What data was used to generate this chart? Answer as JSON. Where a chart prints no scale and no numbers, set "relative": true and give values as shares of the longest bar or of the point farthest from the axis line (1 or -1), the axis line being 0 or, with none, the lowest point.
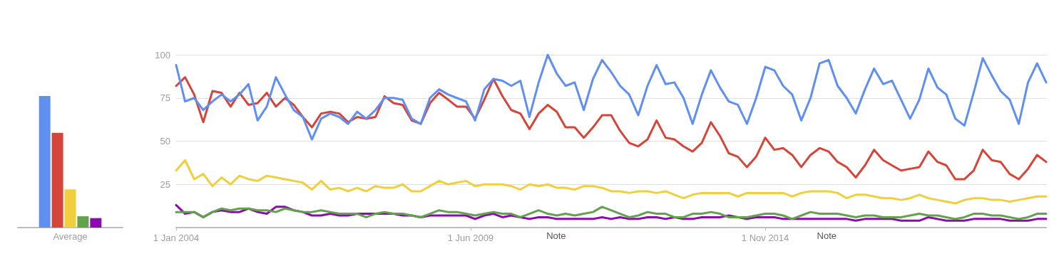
{
  "chart_data": [
    {
      "type": "bar",
      "categories": [
        "Average"
      ],
      "relative": true,
      "series": [
        {
          "color": "#5f8ff0",
          "values": [
            1
          ]
        },
        {
          "color": "#d6453a",
          "values": [
            0.72
          ]
        },
        {
          "color": "#f0cf3e",
          "values": [
            0.29
          ]
        },
        {
          "color": "#62a24a",
          "values": [
            0.086
          ]
        },
        {
          "color": "#8c0bb0",
          "values": [
            0.072
          ]
        }
      ]
    },
    {
      "type": "line",
      "marker": "none",
      "grid": "y",
      "x": [
        "2004-01",
        "2004-03",
        "2004-05",
        "2004-07",
        "2004-09",
        "2004-11",
        "2005-01",
        "2005-03",
        "2005-05",
        "2005-07",
        "2005-09",
        "2005-11",
        "2006-01",
        "2006-03",
        "2006-05",
        "2006-07",
        "2006-09",
        "2006-11",
        "2007-01",
        "2007-03",
        "2007-05",
        "2007-07",
        "2007-09",
        "2007-11",
        "2008-01",
        "2008-03",
        "2008-05",
        "2008-07",
        "2008-09",
        "2008-11",
        "2009-01",
        "2009-03",
        "2009-05",
        "2009-07",
        "2009-09",
        "2009-11",
        "2010-01",
        "2010-03",
        "2010-05",
        "2010-07",
        "2010-09",
        "2010-11",
        "2011-01",
        "2011-03",
        "2011-05",
        "2011-07",
        "2011-09",
        "2011-11",
        "2012-01",
        "2012-03",
        "2012-05",
        "2012-07",
        "2012-09",
        "2012-11",
        "2013-01",
        "2013-03",
        "2013-05",
        "2013-07",
        "2013-09",
        "2013-11",
        "2014-01",
        "2014-03",
        "2014-05",
        "2014-07",
        "2014-09",
        "2014-11",
        "2015-01",
        "2015-03",
        "2015-05",
        "2015-07",
        "2015-09",
        "2015-11",
        "2016-01",
        "2016-03",
        "2016-05",
        "2016-07",
        "2016-09",
        "2016-11",
        "2017-01",
        "2017-03",
        "2017-05",
        "2017-07",
        "2017-09",
        "2017-11",
        "2018-01",
        "2018-03",
        "2018-05",
        "2018-07",
        "2018-09",
        "2018-11",
        "2019-01",
        "2019-03",
        "2019-05",
        "2019-07",
        "2019-09",
        "2019-11",
        "2020-01"
      ],
      "xlim": [
        "2004-01",
        "2020-01"
      ],
      "xticks": [
        {
          "value": "2004-01-01",
          "label": "1 Jan 2004"
        },
        {
          "value": "2009-06-01",
          "label": "1 Jun 2009"
        },
        {
          "value": "2014-11-01",
          "label": "1 Nov 2014"
        }
      ],
      "ylim": [
        0,
        100
      ],
      "yticks": [
        25,
        50,
        75,
        100
      ],
      "annotations": [
        "Note",
        "Note"
      ],
      "series": [
        {
          "color": "#5f8ff0",
          "values": [
            94,
            73,
            75,
            68,
            73,
            77,
            73,
            77,
            83,
            62,
            70,
            87,
            77,
            68,
            64,
            51,
            63,
            66,
            64,
            60,
            67,
            63,
            68,
            75,
            75,
            74,
            63,
            60,
            75,
            80,
            77,
            75,
            73,
            62,
            80,
            86,
            85,
            82,
            85,
            64,
            84,
            100,
            89,
            82,
            84,
            68,
            86,
            97,
            90,
            82,
            77,
            65,
            82,
            94,
            83,
            84,
            75,
            60,
            77,
            91,
            81,
            73,
            71,
            60,
            75,
            93,
            91,
            82,
            77,
            62,
            75,
            95,
            97,
            82,
            75,
            66,
            80,
            92,
            83,
            85,
            74,
            63,
            74,
            92,
            81,
            77,
            63,
            59,
            78,
            98,
            88,
            79,
            74,
            60,
            84,
            95,
            84
          ]
        },
        {
          "color": "#d6453a",
          "values": [
            82,
            87,
            77,
            61,
            79,
            78,
            70,
            78,
            71,
            72,
            78,
            70,
            75,
            71,
            64,
            58,
            66,
            67,
            66,
            61,
            64,
            63,
            64,
            76,
            72,
            71,
            62,
            60,
            72,
            78,
            74,
            70,
            70,
            63,
            74,
            86,
            76,
            68,
            66,
            57,
            66,
            71,
            67,
            58,
            58,
            52,
            58,
            65,
            65,
            56,
            49,
            47,
            51,
            62,
            52,
            51,
            47,
            44,
            49,
            61,
            53,
            43,
            41,
            35,
            41,
            52,
            45,
            46,
            42,
            35,
            42,
            46,
            44,
            38,
            35,
            29,
            36,
            45,
            39,
            36,
            33,
            34,
            35,
            44,
            38,
            36,
            28,
            28,
            33,
            45,
            39,
            38,
            31,
            28,
            34,
            42,
            38
          ]
        },
        {
          "color": "#f0cf3e",
          "values": [
            33,
            39,
            28,
            31,
            24,
            29,
            25,
            30,
            28,
            27,
            30,
            29,
            28,
            27,
            26,
            22,
            27,
            22,
            23,
            21,
            23,
            21,
            24,
            23,
            23,
            25,
            21,
            21,
            24,
            27,
            25,
            26,
            27,
            24,
            25,
            25,
            25,
            24,
            22,
            25,
            24,
            25,
            23,
            23,
            22,
            24,
            24,
            23,
            21,
            21,
            20,
            21,
            21,
            20,
            21,
            19,
            17,
            19,
            20,
            20,
            20,
            20,
            18,
            20,
            20,
            20,
            20,
            20,
            18,
            20,
            21,
            21,
            21,
            20,
            17,
            19,
            19,
            18,
            17,
            17,
            16,
            17,
            19,
            17,
            16,
            15,
            14,
            16,
            17,
            17,
            16,
            16,
            15,
            16,
            17,
            18,
            18
          ]
        },
        {
          "color": "#62a24a",
          "values": [
            9,
            9,
            9,
            6,
            9,
            11,
            10,
            11,
            11,
            10,
            10,
            9,
            11,
            10,
            9,
            9,
            10,
            9,
            8,
            8,
            8,
            6,
            8,
            9,
            8,
            8,
            7,
            6,
            8,
            10,
            9,
            9,
            8,
            7,
            8,
            9,
            8,
            8,
            6,
            8,
            10,
            8,
            7,
            8,
            7,
            8,
            9,
            12,
            10,
            8,
            6,
            7,
            9,
            8,
            8,
            6,
            6,
            8,
            8,
            9,
            8,
            6,
            6,
            6,
            7,
            8,
            8,
            7,
            5,
            7,
            9,
            8,
            8,
            8,
            7,
            6,
            7,
            7,
            6,
            6,
            6,
            7,
            8,
            7,
            7,
            6,
            5,
            6,
            8,
            8,
            7,
            7,
            6,
            5,
            6,
            8,
            8
          ]
        },
        {
          "color": "#8c0bb0",
          "values": [
            13,
            8,
            9,
            6,
            9,
            10,
            9,
            9,
            11,
            9,
            8,
            12,
            12,
            10,
            9,
            7,
            7,
            8,
            7,
            7,
            8,
            8,
            8,
            8,
            8,
            7,
            7,
            6,
            7,
            7,
            7,
            7,
            7,
            5,
            7,
            8,
            6,
            7,
            6,
            5,
            6,
            6,
            5,
            5,
            5,
            5,
            5,
            6,
            5,
            6,
            5,
            5,
            6,
            6,
            5,
            6,
            5,
            5,
            6,
            6,
            6,
            7,
            6,
            5,
            6,
            6,
            6,
            5,
            5,
            5,
            5,
            5,
            5,
            5,
            5,
            4,
            5,
            5,
            5,
            5,
            4,
            4,
            4,
            6,
            5,
            4,
            4,
            4,
            5,
            5,
            5,
            5,
            4,
            4,
            4,
            5,
            5
          ]
        }
      ]
    }
  ]
}
